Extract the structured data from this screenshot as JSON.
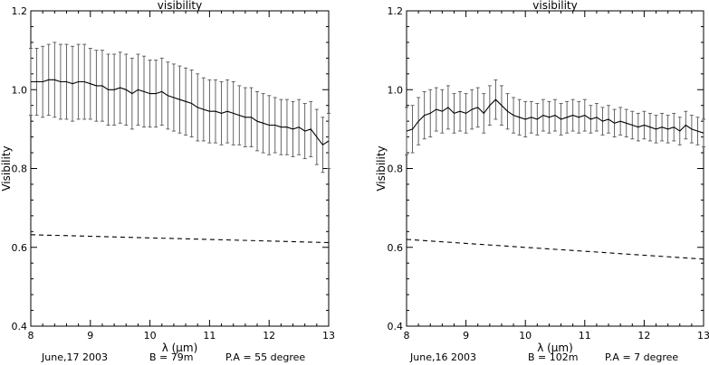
{
  "chart_data": [
    {
      "type": "line",
      "title": "visibility",
      "xlabel": "λ (μm)",
      "ylabel": "Visibility",
      "xlim": [
        8,
        13
      ],
      "ylim": [
        0.4,
        1.2
      ],
      "xticks": [
        "8",
        "9",
        "10",
        "11",
        "12",
        "13"
      ],
      "yticks": [
        "0.4",
        "0.6",
        "0.8",
        "1.0",
        "1.2"
      ],
      "series": [
        {
          "style": "solid-with-error-bars",
          "x": [
            8.0,
            8.1,
            8.2,
            8.3,
            8.4,
            8.5,
            8.6,
            8.7,
            8.8,
            8.9,
            9.0,
            9.1,
            9.2,
            9.3,
            9.4,
            9.5,
            9.6,
            9.7,
            9.8,
            9.9,
            10.0,
            10.1,
            10.2,
            10.3,
            10.4,
            10.5,
            10.6,
            10.7,
            10.8,
            10.9,
            11.0,
            11.1,
            11.2,
            11.3,
            11.4,
            11.5,
            11.6,
            11.7,
            11.8,
            11.9,
            12.0,
            12.1,
            12.2,
            12.3,
            12.4,
            12.5,
            12.6,
            12.7,
            12.8,
            12.9,
            13.0
          ],
          "y": [
            1.02,
            1.02,
            1.02,
            1.025,
            1.025,
            1.02,
            1.02,
            1.015,
            1.02,
            1.02,
            1.015,
            1.01,
            1.01,
            1.0,
            1.0,
            1.005,
            1.0,
            0.99,
            1.0,
            0.995,
            0.99,
            0.99,
            0.995,
            0.985,
            0.98,
            0.975,
            0.97,
            0.965,
            0.955,
            0.95,
            0.945,
            0.945,
            0.94,
            0.945,
            0.94,
            0.935,
            0.93,
            0.93,
            0.92,
            0.915,
            0.91,
            0.91,
            0.905,
            0.905,
            0.9,
            0.905,
            0.895,
            0.9,
            0.88,
            0.86,
            0.87
          ],
          "err": [
            0.085,
            0.085,
            0.09,
            0.09,
            0.095,
            0.095,
            0.095,
            0.095,
            0.095,
            0.095,
            0.09,
            0.09,
            0.09,
            0.09,
            0.09,
            0.09,
            0.09,
            0.09,
            0.09,
            0.09,
            0.085,
            0.085,
            0.085,
            0.085,
            0.085,
            0.085,
            0.085,
            0.085,
            0.085,
            0.08,
            0.08,
            0.08,
            0.08,
            0.08,
            0.08,
            0.075,
            0.075,
            0.075,
            0.075,
            0.075,
            0.075,
            0.07,
            0.07,
            0.07,
            0.07,
            0.07,
            0.07,
            0.07,
            0.07,
            0.07,
            0.07
          ]
        },
        {
          "style": "dashed",
          "x": [
            8.0,
            9.0,
            10.0,
            11.0,
            12.0,
            13.0
          ],
          "y": [
            0.632,
            0.628,
            0.624,
            0.62,
            0.616,
            0.612
          ]
        }
      ],
      "footer": [
        "June,17 2003",
        "B = 79m",
        "P.A = 55 degree"
      ]
    },
    {
      "type": "line",
      "title": "visibility",
      "xlabel": "λ (μm)",
      "ylabel": "Visibility",
      "xlim": [
        8,
        13
      ],
      "ylim": [
        0.4,
        1.2
      ],
      "xticks": [
        "8",
        "9",
        "10",
        "11",
        "12",
        "13"
      ],
      "yticks": [
        "0.4",
        "0.6",
        "0.8",
        "1.0",
        "1.2"
      ],
      "series": [
        {
          "style": "solid-with-error-bars",
          "x": [
            8.0,
            8.1,
            8.2,
            8.3,
            8.4,
            8.5,
            8.6,
            8.7,
            8.8,
            8.9,
            9.0,
            9.1,
            9.2,
            9.3,
            9.4,
            9.5,
            9.6,
            9.7,
            9.8,
            9.9,
            10.0,
            10.1,
            10.2,
            10.3,
            10.4,
            10.5,
            10.6,
            10.7,
            10.8,
            10.9,
            11.0,
            11.1,
            11.2,
            11.3,
            11.4,
            11.5,
            11.6,
            11.7,
            11.8,
            11.9,
            12.0,
            12.1,
            12.2,
            12.3,
            12.4,
            12.5,
            12.6,
            12.7,
            12.8,
            12.9,
            13.0
          ],
          "y": [
            0.895,
            0.9,
            0.92,
            0.935,
            0.94,
            0.95,
            0.945,
            0.955,
            0.94,
            0.945,
            0.94,
            0.95,
            0.955,
            0.94,
            0.96,
            0.975,
            0.96,
            0.945,
            0.935,
            0.93,
            0.925,
            0.93,
            0.925,
            0.935,
            0.93,
            0.935,
            0.925,
            0.93,
            0.935,
            0.93,
            0.935,
            0.925,
            0.93,
            0.92,
            0.925,
            0.915,
            0.92,
            0.915,
            0.91,
            0.905,
            0.91,
            0.905,
            0.9,
            0.905,
            0.9,
            0.905,
            0.895,
            0.91,
            0.9,
            0.895,
            0.89
          ],
          "err": [
            0.06,
            0.06,
            0.06,
            0.06,
            0.06,
            0.055,
            0.055,
            0.055,
            0.05,
            0.05,
            0.05,
            0.05,
            0.05,
            0.05,
            0.05,
            0.05,
            0.05,
            0.045,
            0.045,
            0.045,
            0.045,
            0.04,
            0.04,
            0.04,
            0.04,
            0.04,
            0.04,
            0.04,
            0.04,
            0.04,
            0.04,
            0.035,
            0.035,
            0.035,
            0.035,
            0.035,
            0.035,
            0.035,
            0.035,
            0.035,
            0.035,
            0.035,
            0.035,
            0.035,
            0.035,
            0.035,
            0.035,
            0.035,
            0.035,
            0.035,
            0.035
          ]
        },
        {
          "style": "dashed",
          "x": [
            8.0,
            9.0,
            10.0,
            11.0,
            12.0,
            13.0
          ],
          "y": [
            0.62,
            0.61,
            0.6,
            0.59,
            0.58,
            0.57
          ]
        }
      ],
      "footer": [
        "June,16 2003",
        "B = 102m",
        "P.A = 7 degree"
      ]
    }
  ]
}
